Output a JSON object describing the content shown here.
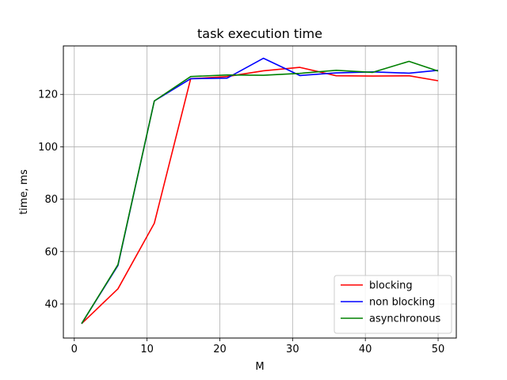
{
  "chart_data": {
    "type": "line",
    "title": "task execution time",
    "xlabel": "M",
    "ylabel": "time, ms",
    "xlim": [
      -1.5,
      52.5
    ],
    "ylim": [
      27,
      138.5
    ],
    "xticks": [
      0,
      10,
      20,
      30,
      40,
      50
    ],
    "yticks": [
      40,
      60,
      80,
      100,
      120
    ],
    "grid": true,
    "legend_position": "lower-right",
    "series": [
      {
        "name": "blocking",
        "color": "#ff0000",
        "x": [
          1,
          6,
          11,
          16,
          21,
          26,
          31,
          36,
          41,
          46,
          50
        ],
        "y": [
          32.5,
          45.8,
          70.8,
          126.0,
          126.8,
          129.0,
          130.3,
          127.1,
          127.0,
          127.1,
          125.2
        ]
      },
      {
        "name": "non blocking",
        "color": "#0000ff",
        "x": [
          1,
          6,
          11,
          16,
          21,
          26,
          31,
          36,
          41,
          46,
          50
        ],
        "y": [
          32.5,
          54.7,
          117.5,
          126.0,
          126.2,
          133.8,
          127.2,
          128.2,
          128.6,
          128.1,
          129.2
        ]
      },
      {
        "name": "asynchronous",
        "color": "#008000",
        "x": [
          1,
          6,
          11,
          16,
          21,
          26,
          31,
          36,
          41,
          46,
          50
        ],
        "y": [
          32.5,
          55.0,
          117.5,
          126.8,
          127.4,
          127.3,
          128.0,
          129.2,
          128.4,
          132.6,
          128.9
        ]
      }
    ]
  }
}
